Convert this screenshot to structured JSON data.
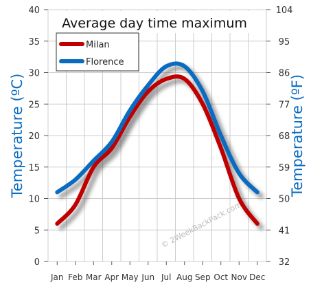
{
  "chart_data": {
    "type": "line",
    "title": "Average day time maximum",
    "categories": [
      "Jan",
      "Feb",
      "Mar",
      "Apr",
      "May",
      "Jun",
      "Jul",
      "Aug",
      "Sep",
      "Oct",
      "Nov",
      "Dec"
    ],
    "series": [
      {
        "name": "Milan",
        "color": "#c00000",
        "values": [
          6,
          9,
          15,
          18,
          23,
          27,
          29,
          29,
          25,
          18,
          10,
          6
        ]
      },
      {
        "name": "Florence",
        "color": "#0a6cc0",
        "values": [
          11,
          13,
          16,
          19,
          24,
          28,
          31,
          31,
          27,
          20,
          14,
          11
        ]
      }
    ],
    "ylabel_left": "Temperature (ºC)",
    "ylabel_right": "Temperature (ºF)",
    "ylim": [
      0,
      40
    ],
    "yticks_left": [
      "0",
      "5",
      "10",
      "15",
      "20",
      "25",
      "30",
      "35",
      "40"
    ],
    "yticks_right": [
      "32",
      "41",
      "50",
      "59",
      "68",
      "77",
      "86",
      "95",
      "104"
    ],
    "grid": true,
    "legend_position": "top-left",
    "watermark": "© 2WeekBackPack.com",
    "axis_color": "#0a6cc0"
  }
}
